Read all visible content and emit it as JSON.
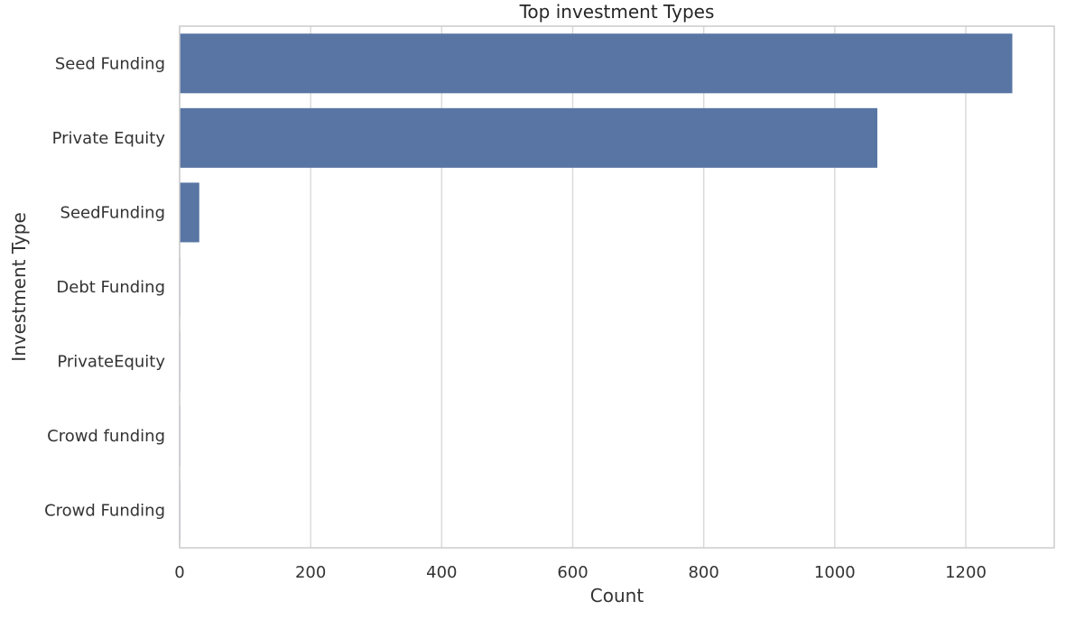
{
  "chart_data": {
    "type": "bar",
    "orientation": "horizontal",
    "title": "Top investment Types",
    "xlabel": "Count",
    "ylabel": "Investment Type",
    "categories": [
      "Seed Funding",
      "Private Equity",
      "SeedFunding",
      "Debt Funding",
      "PrivateEquity",
      "Crowd funding",
      "Crowd Funding"
    ],
    "values": [
      1271,
      1065,
      30,
      1,
      1,
      1,
      1
    ],
    "xlim": [
      0,
      1335
    ],
    "xticks": [
      0,
      200,
      400,
      600,
      800,
      1000,
      1200
    ],
    "grid": true,
    "colors": {
      "bar": "#5875a4",
      "grid": "#dadada",
      "frame": "#cccccc"
    }
  }
}
